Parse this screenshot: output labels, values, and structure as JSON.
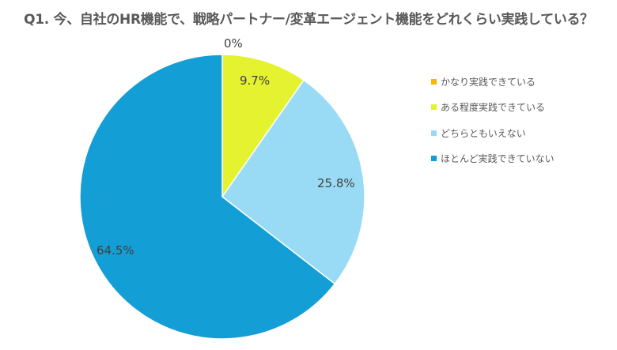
{
  "chart_data": {
    "type": "pie",
    "title": "Q1. 今、自社のHR機能で、戦略パートナー/変革エージェント機能をどれくらい実践している？",
    "categories": [
      "かなり実践できている",
      "ある程度実践できている",
      "どちらともいえない",
      "ほとんど実践できていない"
    ],
    "values": [
      0,
      9.7,
      25.8,
      64.5
    ],
    "labels": [
      "0%",
      "9.7%",
      "25.8%",
      "64.5%"
    ],
    "colors": [
      "#F5B800",
      "#E5F230",
      "#99DBF5",
      "#139ED5"
    ],
    "legend_position": "right",
    "start_angle": "12 o'clock, clockwise"
  },
  "title": "Q1. 今、自社のHR機能で、戦略パートナー/変革エージェント機能をどれくらい実践している？",
  "legend": [
    {
      "label": "かなり実践できている",
      "color": "#F5B800"
    },
    {
      "label": "ある程度実践できている",
      "color": "#E5F230"
    },
    {
      "label": "どちらともいえない",
      "color": "#99DBF5"
    },
    {
      "label": "ほとんど実践できていない",
      "color": "#139ED5"
    }
  ],
  "data_labels": [
    "0%",
    "9.7%",
    "25.8%",
    "64.5%"
  ]
}
